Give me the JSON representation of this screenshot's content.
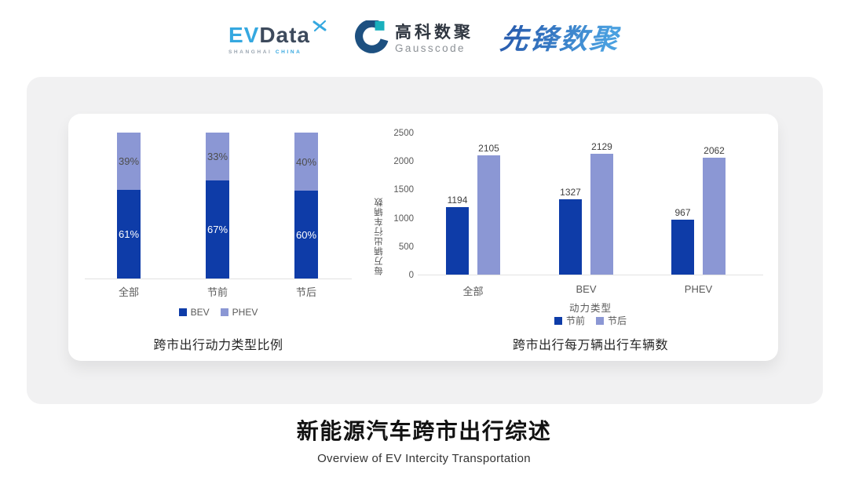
{
  "header": {
    "evdata": {
      "part1": "EV",
      "part2": "Data",
      "tagline_1": "SHANGHAI",
      "tagline_2": "CHINA"
    },
    "gausscode": {
      "name_cn": "高科数聚",
      "name_en": "Gausscode"
    },
    "xianfeng": {
      "name": "先锋数聚"
    }
  },
  "colors": {
    "bev_dark_blue": "#0e3ca8",
    "phev_light_blue": "#8b97d4",
    "axis_line": "#e2e2e2",
    "evdata_cyan": "#35a8e0",
    "evdata_slate": "#3d4a5c",
    "gauss_dark": "#1d5080",
    "gauss_teal": "#19b0bd",
    "xianfeng_blue": "#2f6fc2"
  },
  "chart_data": [
    {
      "type": "bar",
      "subtype": "stacked-percent",
      "title": "跨市出行动力类型比例",
      "categories": [
        "全部",
        "节前",
        "节后"
      ],
      "series": [
        {
          "name": "BEV",
          "color": "#0e3ca8",
          "values": [
            61,
            67,
            60
          ]
        },
        {
          "name": "PHEV",
          "color": "#8b97d4",
          "values": [
            39,
            33,
            40
          ]
        }
      ],
      "value_suffix": "%",
      "ylim": [
        0,
        100
      ],
      "grid": false,
      "legend_position": "bottom"
    },
    {
      "type": "bar",
      "subtype": "grouped",
      "title": "跨市出行每万辆出行车辆数",
      "categories": [
        "全部",
        "BEV",
        "PHEV"
      ],
      "series": [
        {
          "name": "节前",
          "color": "#0e3ca8",
          "values": [
            1194,
            1327,
            967
          ]
        },
        {
          "name": "节后",
          "color": "#8b97d4",
          "values": [
            2105,
            2129,
            2062
          ]
        }
      ],
      "xlabel": "动力类型",
      "ylabel": "每万辆出行车辆数",
      "ylim": [
        0,
        2500
      ],
      "yticks": [
        0,
        500,
        1000,
        1500,
        2000,
        2500
      ],
      "grid": false,
      "legend_position": "bottom"
    }
  ],
  "footer": {
    "title": "新能源汽车跨市出行综述",
    "subtitle": "Overview of EV Intercity Transportation"
  }
}
